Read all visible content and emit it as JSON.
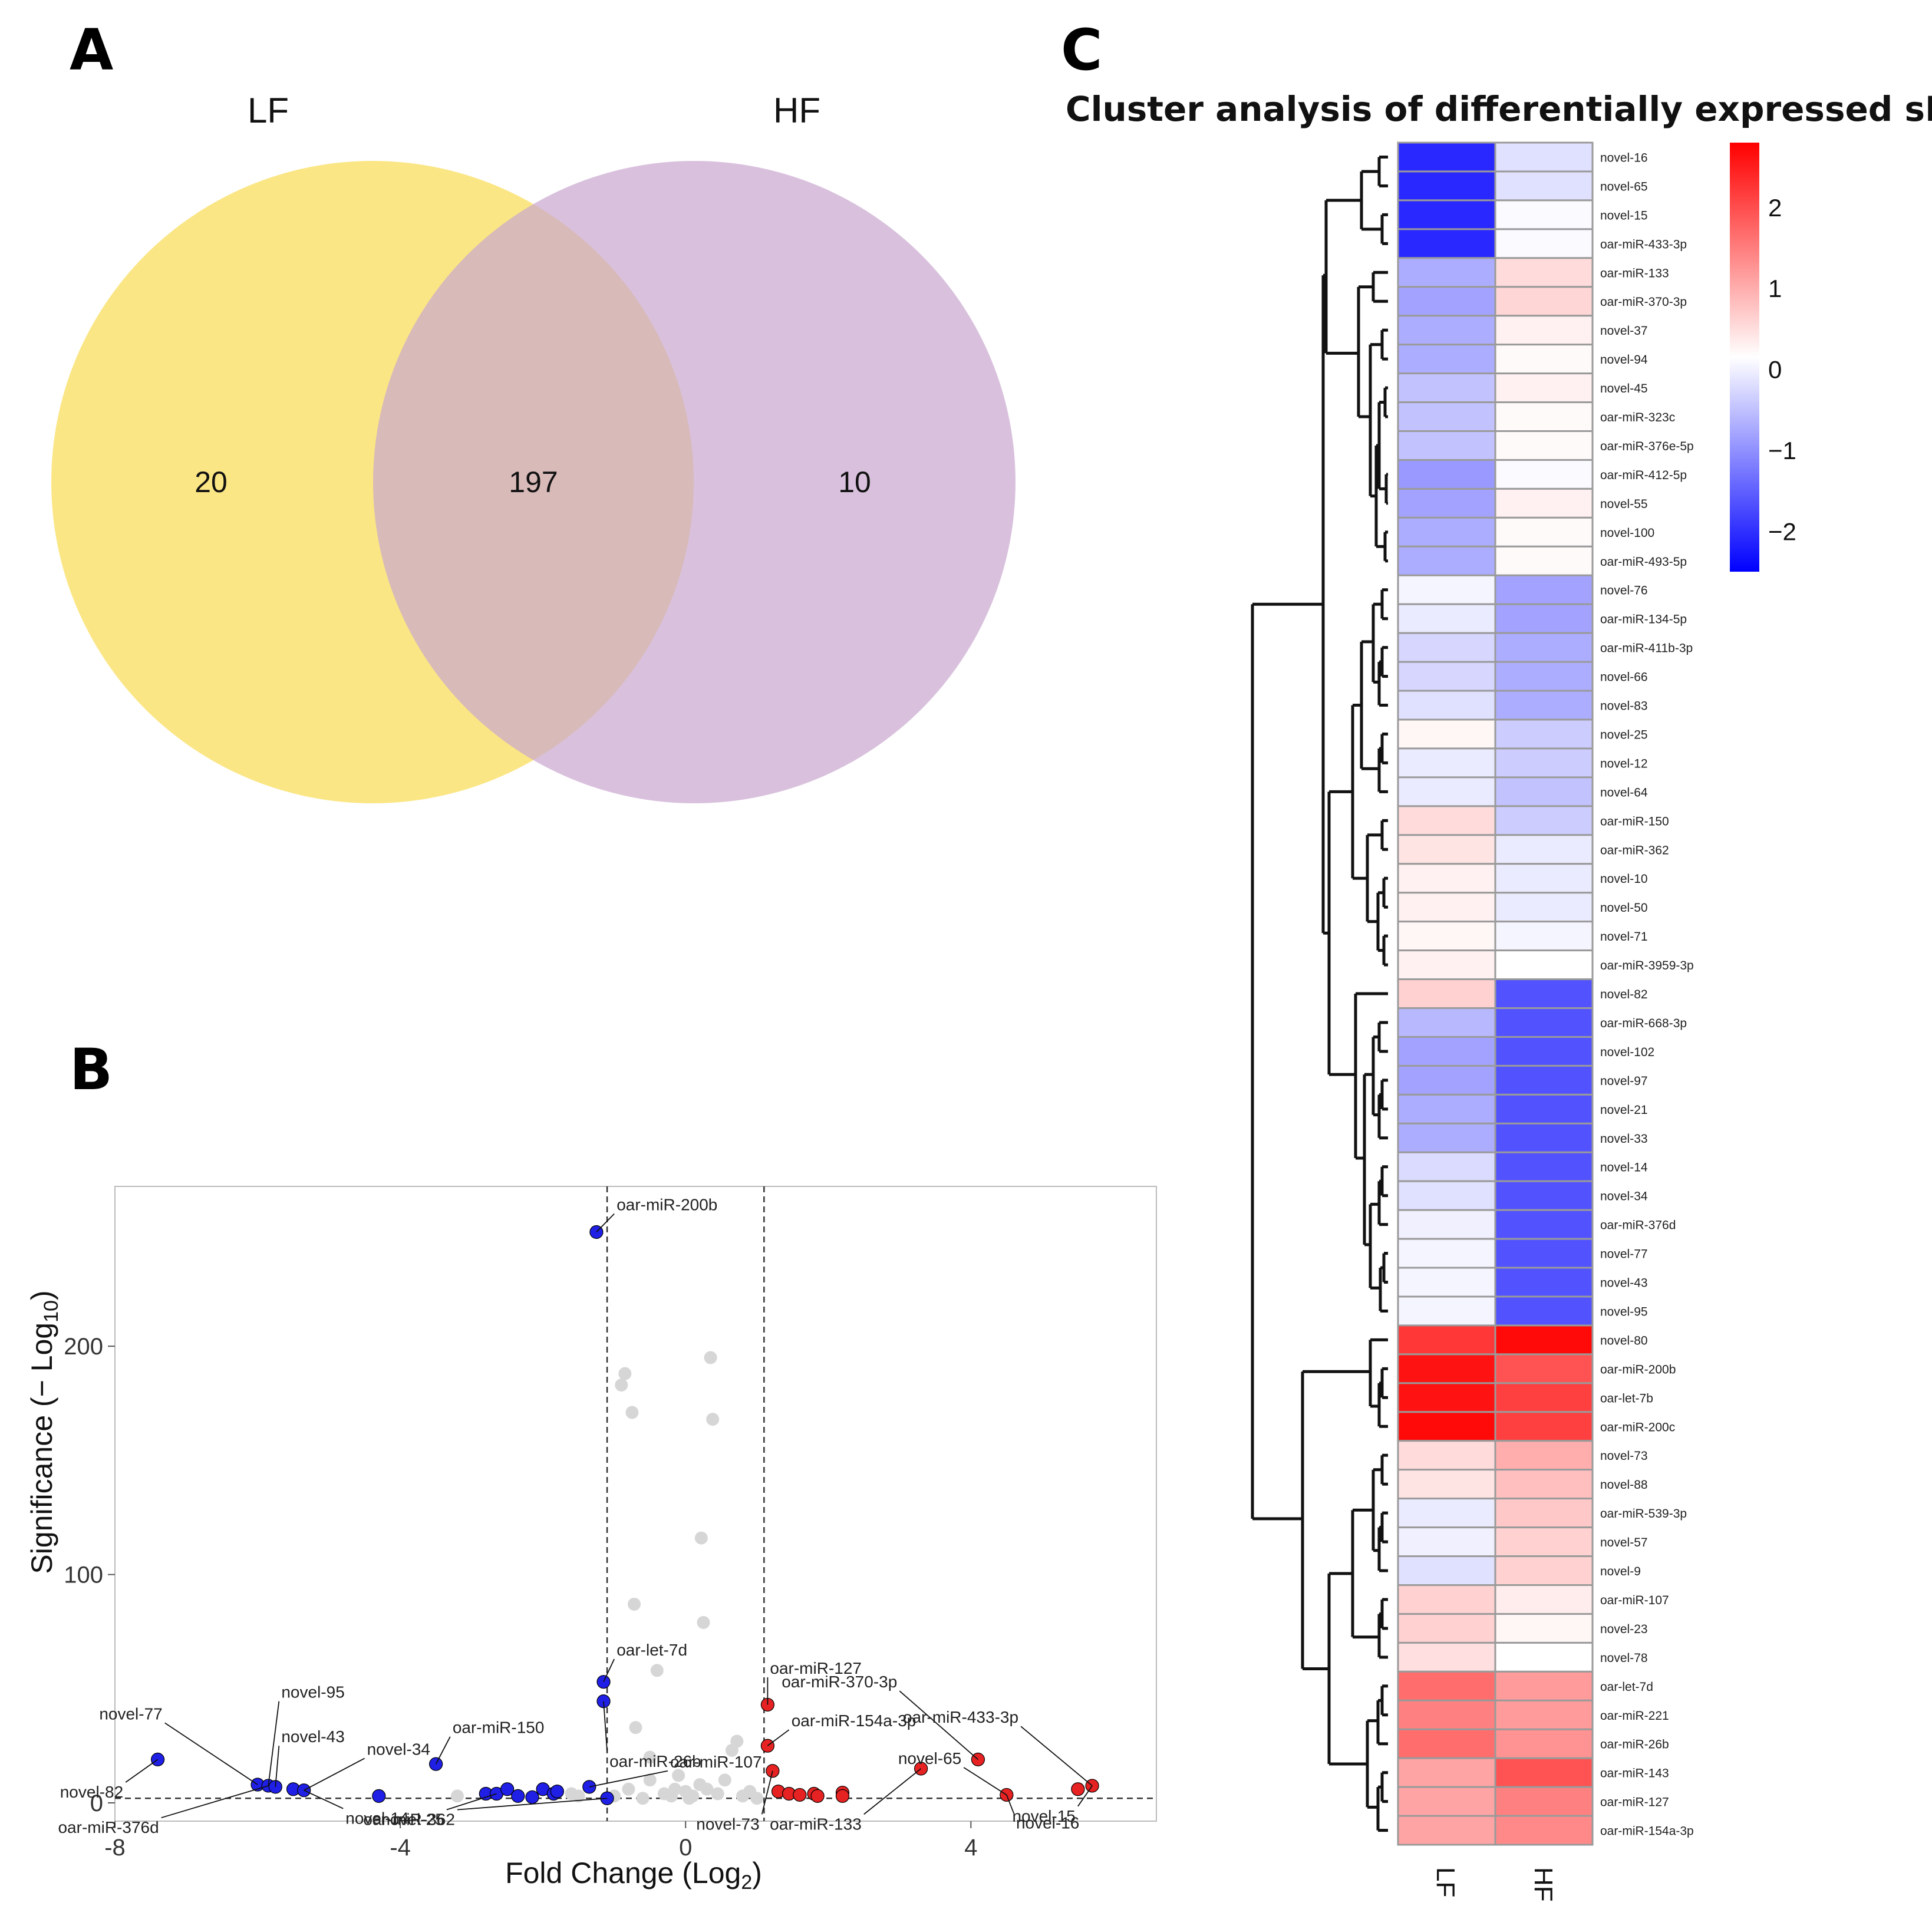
{
  "panels": {
    "a": "A",
    "b": "B",
    "c": "C"
  },
  "colors": {
    "lf_circle": "#fbe685",
    "hf_circle": "#c9a6cf",
    "down": "#1f1fe6",
    "up": "#e62222",
    "ns": "#d6d6d6",
    "heat_low": "#0000ff",
    "heat_mid": "#ffffff",
    "heat_high": "#ff0000"
  },
  "chart_data": [
    {
      "type": "venn",
      "sets": [
        "LF",
        "HF"
      ],
      "counts": {
        "LF_only": 20,
        "both": 197,
        "HF_only": 10
      }
    },
    {
      "type": "scatter",
      "xlabel": "Fold Change (Log2)",
      "xlabel_main": "Fold Change (Log",
      "xlabel_sub": "2",
      "xlabel_end": ")",
      "ylabel": "Significance (− Log10)",
      "ylabel_main": "Significance (− Log",
      "ylabel_sub": "10",
      "ylabel_end": ")",
      "xlim": [
        -8,
        6.6
      ],
      "ylim": [
        -8,
        270
      ],
      "xticks": [
        -8,
        -4,
        0,
        4
      ],
      "xtick_labels": [
        "-8",
        "-4",
        "0",
        "4"
      ],
      "yticks": [
        0,
        100,
        200
      ],
      "ytick_labels": [
        "0",
        "100",
        "200"
      ],
      "fc_thresholds": [
        -1.1,
        1.1
      ],
      "sig_threshold": 2,
      "down": [
        [
          -7.4,
          19
        ],
        [
          -6.0,
          8
        ],
        [
          -5.85,
          7.5
        ],
        [
          -5.75,
          7
        ],
        [
          -5.5,
          6
        ],
        [
          -5.35,
          5.5
        ],
        [
          -4.3,
          3
        ],
        [
          -3.5,
          17
        ],
        [
          -2.8,
          4
        ],
        [
          -2.65,
          4
        ],
        [
          -2.5,
          6
        ],
        [
          -2.35,
          3
        ],
        [
          -2.15,
          2.5
        ],
        [
          -2.0,
          6
        ],
        [
          -1.85,
          4
        ],
        [
          -1.8,
          5
        ],
        [
          -1.35,
          7
        ],
        [
          -1.25,
          250
        ],
        [
          -1.15,
          53
        ],
        [
          -1.15,
          44.5
        ],
        [
          -1.1,
          2
        ]
      ],
      "up": [
        [
          1.15,
          43
        ],
        [
          1.15,
          25
        ],
        [
          1.22,
          14
        ],
        [
          1.3,
          5
        ],
        [
          1.45,
          4
        ],
        [
          1.6,
          3.5
        ],
        [
          1.8,
          4
        ],
        [
          1.85,
          3
        ],
        [
          2.2,
          4.5
        ],
        [
          2.2,
          3
        ],
        [
          3.3,
          15
        ],
        [
          4.1,
          19
        ],
        [
          4.5,
          3.5
        ],
        [
          5.5,
          6
        ],
        [
          5.7,
          7.5
        ]
      ],
      "ns": [
        [
          -1.0,
          3
        ],
        [
          -0.9,
          183
        ],
        [
          -0.85,
          188
        ],
        [
          -0.75,
          171
        ],
        [
          -0.72,
          87
        ],
        [
          -0.7,
          33
        ],
        [
          -0.6,
          2
        ],
        [
          -0.5,
          20
        ],
        [
          -0.5,
          10
        ],
        [
          -0.4,
          58
        ],
        [
          -0.3,
          4
        ],
        [
          -0.2,
          3
        ],
        [
          -0.1,
          12
        ],
        [
          0.0,
          5
        ],
        [
          0.05,
          2
        ],
        [
          0.2,
          8
        ],
        [
          0.22,
          116
        ],
        [
          0.25,
          79
        ],
        [
          0.3,
          6
        ],
        [
          0.35,
          195
        ],
        [
          0.38,
          168
        ],
        [
          0.45,
          4
        ],
        [
          0.55,
          10
        ],
        [
          0.65,
          23
        ],
        [
          0.72,
          27
        ],
        [
          0.8,
          3
        ],
        [
          0.9,
          5
        ],
        [
          1.0,
          2
        ],
        [
          -3.2,
          3
        ],
        [
          -1.5,
          3
        ],
        [
          -1.6,
          4
        ],
        [
          -0.8,
          6
        ],
        [
          0.1,
          3
        ],
        [
          -0.15,
          6
        ]
      ],
      "annotations": [
        {
          "text": "oar-miR-200b",
          "x": -1.25,
          "y": 250,
          "dx": 0.25,
          "dy": 8
        },
        {
          "text": "oar-let-7d",
          "x": -1.15,
          "y": 53,
          "dx": 0.15,
          "dy": 10
        },
        {
          "text": "oar-miR-26b",
          "x": -1.15,
          "y": 44.5,
          "dx": 0.05,
          "dy": -22
        },
        {
          "text": "oar-miR-107",
          "x": -1.35,
          "y": 7,
          "dx": 1.1,
          "dy": 7
        },
        {
          "text": "oar-miR-362",
          "x": -1.1,
          "y": 2,
          "dx": -2.1,
          "dy": -5
        },
        {
          "text": "novel-25",
          "x": -2.65,
          "y": 4,
          "dx": -0.7,
          "dy": -7
        },
        {
          "text": "oar-miR-150",
          "x": -3.5,
          "y": 17,
          "dx": 0.2,
          "dy": 12
        },
        {
          "text": "novel-34",
          "x": -5.35,
          "y": 5.5,
          "dx": 0.85,
          "dy": 14
        },
        {
          "text": "novel-14",
          "x": -5.35,
          "y": 5.5,
          "dx": 0.55,
          "dy": -8
        },
        {
          "text": "novel-95",
          "x": -5.85,
          "y": 7.5,
          "dx": 0.15,
          "dy": 37
        },
        {
          "text": "novel-43",
          "x": -5.75,
          "y": 7,
          "dx": 0.05,
          "dy": 18
        },
        {
          "text": "novel-77",
          "x": -6.0,
          "y": 8,
          "dx": -1.3,
          "dy": 27
        },
        {
          "text": "novel-82",
          "x": -7.4,
          "y": 19,
          "dx": -0.45,
          "dy": -10
        },
        {
          "text": "oar-miR-376d",
          "x": -5.85,
          "y": 7.5,
          "dx": -1.5,
          "dy": -14
        },
        {
          "text": "oar-miR-127",
          "x": 1.15,
          "y": 43,
          "dx": 0.0,
          "dy": 12
        },
        {
          "text": "oar-miR-154a-3p",
          "x": 1.15,
          "y": 25,
          "dx": 0.3,
          "dy": 7
        },
        {
          "text": "novel-73",
          "x": 1.22,
          "y": 14,
          "dx": -0.15,
          "dy": -19
        },
        {
          "text": "oar-miR-133",
          "x": 3.3,
          "y": 15,
          "dx": -0.8,
          "dy": -20
        },
        {
          "text": "oar-miR-370-3p",
          "x": 4.1,
          "y": 19,
          "dx": -1.1,
          "dy": 30
        },
        {
          "text": "novel-65",
          "x": 4.5,
          "y": 3.5,
          "dx": -0.6,
          "dy": 12
        },
        {
          "text": "novel-16",
          "x": 4.5,
          "y": 3.5,
          "dx": 0.1,
          "dy": -8
        },
        {
          "text": "oar-miR-433-3p",
          "x": 5.7,
          "y": 7.5,
          "dx": -1.0,
          "dy": 26
        },
        {
          "text": "novel-15",
          "x": 5.7,
          "y": 7.5,
          "dx": -0.2,
          "dy": -9
        }
      ]
    },
    {
      "type": "heatmap",
      "title": "Cluster analysis of differentially expressed sRNA",
      "columns": [
        "LF",
        "HF"
      ],
      "rows": [
        "novel-16",
        "novel-65",
        "novel-15",
        "oar-miR-433-3p",
        "oar-miR-133",
        "oar-miR-370-3p",
        "novel-37",
        "novel-94",
        "novel-45",
        "oar-miR-323c",
        "oar-miR-376e-5p",
        "oar-miR-412-5p",
        "novel-55",
        "novel-100",
        "oar-miR-493-5p",
        "novel-76",
        "oar-miR-134-5p",
        "oar-miR-411b-3p",
        "novel-66",
        "novel-83",
        "novel-25",
        "novel-12",
        "novel-64",
        "oar-miR-150",
        "oar-miR-362",
        "novel-10",
        "novel-50",
        "novel-71",
        "oar-miR-3959-3p",
        "novel-82",
        "oar-miR-668-3p",
        "novel-102",
        "novel-97",
        "novel-21",
        "novel-33",
        "novel-14",
        "novel-34",
        "oar-miR-376d",
        "novel-77",
        "novel-43",
        "novel-95",
        "novel-80",
        "oar-miR-200b",
        "oar-let-7b",
        "oar-miR-200c",
        "novel-73",
        "novel-88",
        "oar-miR-539-3p",
        "novel-57",
        "novel-9",
        "oar-miR-107",
        "novel-23",
        "novel-78",
        "oar-let-7d",
        "oar-miR-221",
        "oar-miR-26b",
        "oar-miR-143",
        "oar-miR-127",
        "oar-miR-154a-3p"
      ],
      "values": [
        [
          -2.1,
          -0.3
        ],
        [
          -2.1,
          -0.3
        ],
        [
          -2.1,
          -0.05
        ],
        [
          -2.1,
          -0.05
        ],
        [
          -0.8,
          0.4
        ],
        [
          -0.9,
          0.45
        ],
        [
          -0.8,
          0.15
        ],
        [
          -0.8,
          0.05
        ],
        [
          -0.6,
          0.15
        ],
        [
          -0.6,
          0.05
        ],
        [
          -0.6,
          0.05
        ],
        [
          -1.0,
          -0.05
        ],
        [
          -0.9,
          0.15
        ],
        [
          -0.8,
          0.05
        ],
        [
          -0.8,
          0.05
        ],
        [
          -0.1,
          -0.9
        ],
        [
          -0.2,
          -0.9
        ],
        [
          -0.4,
          -0.8
        ],
        [
          -0.4,
          -0.8
        ],
        [
          -0.3,
          -0.8
        ],
        [
          0.1,
          -0.5
        ],
        [
          -0.2,
          -0.5
        ],
        [
          -0.2,
          -0.6
        ],
        [
          0.4,
          -0.5
        ],
        [
          0.3,
          -0.2
        ],
        [
          0.15,
          -0.2
        ],
        [
          0.15,
          -0.2
        ],
        [
          0.1,
          -0.1
        ],
        [
          0.15,
          0.0
        ],
        [
          0.5,
          -1.7
        ],
        [
          -0.7,
          -1.7
        ],
        [
          -0.9,
          -1.7
        ],
        [
          -0.9,
          -1.7
        ],
        [
          -0.8,
          -1.7
        ],
        [
          -0.8,
          -1.7
        ],
        [
          -0.35,
          -1.7
        ],
        [
          -0.3,
          -1.7
        ],
        [
          -0.15,
          -1.7
        ],
        [
          -0.1,
          -1.7
        ],
        [
          -0.1,
          -1.7
        ],
        [
          -0.1,
          -1.7
        ],
        [
          2.2,
          2.7
        ],
        [
          2.6,
          1.9
        ],
        [
          2.6,
          2.1
        ],
        [
          2.7,
          2.1
        ],
        [
          0.4,
          0.9
        ],
        [
          0.3,
          0.7
        ],
        [
          -0.2,
          0.6
        ],
        [
          -0.15,
          0.5
        ],
        [
          -0.3,
          0.5
        ],
        [
          0.5,
          0.2
        ],
        [
          0.5,
          0.1
        ],
        [
          0.35,
          0.0
        ],
        [
          1.6,
          1.1
        ],
        [
          1.4,
          1.1
        ],
        [
          1.6,
          1.2
        ],
        [
          1.0,
          1.9
        ],
        [
          1.0,
          1.4
        ],
        [
          1.0,
          1.3
        ]
      ],
      "color_range": [
        -2.5,
        2.8
      ],
      "legend_ticks": [
        2,
        1,
        0,
        -1,
        -2
      ],
      "legend_labels": [
        "2",
        "1",
        "0",
        "−1",
        "−2"
      ]
    }
  ]
}
